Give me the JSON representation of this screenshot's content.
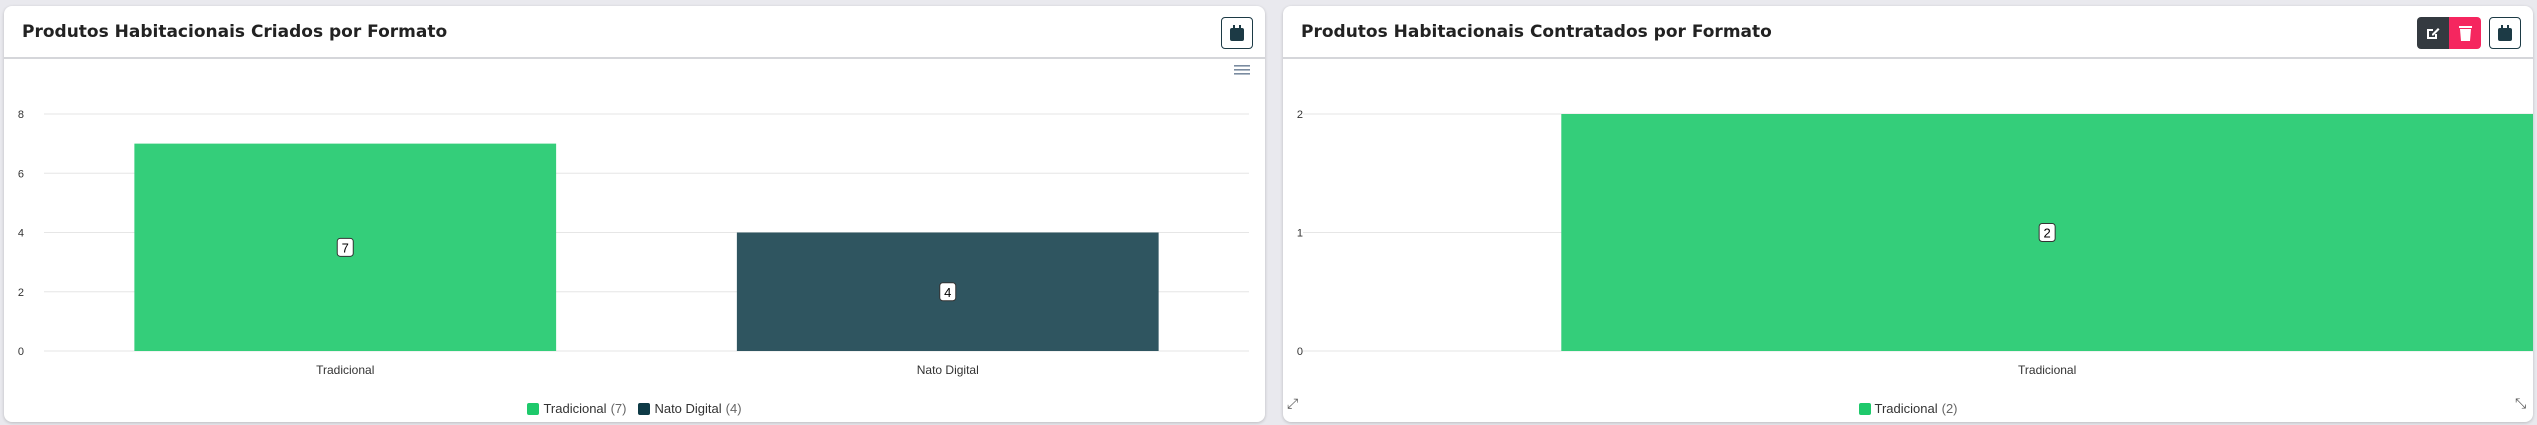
{
  "chart_data": [
    {
      "type": "bar",
      "title": "Produtos Habitacionais Criados por Formato",
      "categories": [
        "Tradicional",
        "Nato Digital"
      ],
      "values": [
        7,
        4
      ],
      "colors": [
        "#34ce7a",
        "#2f5560"
      ],
      "legend_colors": [
        "#1ec96b",
        "#0e3a46"
      ],
      "ylim": [
        0,
        8
      ],
      "yticks": [
        0,
        2,
        4,
        6,
        8
      ],
      "grid": true,
      "legend": "bottom",
      "data_labels": [
        "7",
        "4"
      ],
      "legend_entries": [
        {
          "label": "Tradicional",
          "count": "(7)"
        },
        {
          "label": "Nato Digital",
          "count": "(4)"
        }
      ]
    },
    {
      "type": "bar",
      "title": "Produtos Habitacionais Contratados por Formato",
      "categories": [
        "Tradicional"
      ],
      "values": [
        2
      ],
      "colors": [
        "#34ce7a"
      ],
      "legend_colors": [
        "#1ec96b"
      ],
      "ylim": [
        0,
        2
      ],
      "yticks": [
        0,
        1,
        2
      ],
      "grid": true,
      "legend": "bottom",
      "data_labels": [
        "2"
      ],
      "legend_entries": [
        {
          "label": "Tradicional",
          "count": "(2)"
        }
      ]
    }
  ],
  "icons": {
    "calendar": "calendar-icon",
    "menu": "hamburger-menu-icon",
    "edit": "edit-icon",
    "delete": "trash-icon",
    "resize": "resize-icon"
  },
  "colors": {
    "edit_button": "#343a40",
    "delete_button": "#f5265f",
    "calendar_border": "#1c3a45"
  }
}
